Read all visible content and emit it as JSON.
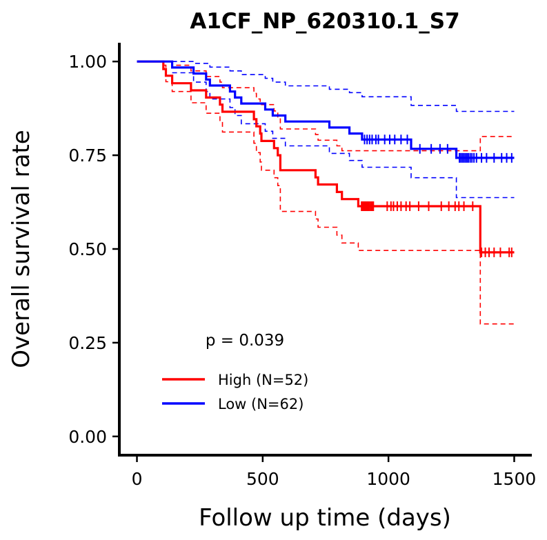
{
  "chart_data": {
    "type": "line",
    "title": "A1CF_NP_620310.1_S7",
    "xlabel": "Follow up time (days)",
    "ylabel": "Overall survival rate",
    "xlim": [
      -70,
      1570
    ],
    "ylim": [
      -0.05,
      1.05
    ],
    "xticks": [
      0,
      500,
      1000,
      1500
    ],
    "xtick_labels": [
      "0",
      "500",
      "1000",
      "1500"
    ],
    "yticks": [
      0.0,
      0.25,
      0.5,
      0.75,
      1.0
    ],
    "ytick_labels": [
      "0.00",
      "0.25",
      "0.50",
      "0.75",
      "1.00"
    ],
    "grid": false,
    "legend_position": "bottom-left",
    "annotation": "p = 0.039",
    "series": [
      {
        "name": "High (N=52)",
        "color": "#ff0000",
        "steps": [
          [
            0,
            1.0
          ],
          [
            105,
            1.0
          ],
          [
            105,
            0.98
          ],
          [
            115,
            0.98
          ],
          [
            115,
            0.962
          ],
          [
            140,
            0.962
          ],
          [
            140,
            0.942
          ],
          [
            215,
            0.942
          ],
          [
            215,
            0.923
          ],
          [
            275,
            0.923
          ],
          [
            275,
            0.904
          ],
          [
            330,
            0.904
          ],
          [
            330,
            0.885
          ],
          [
            340,
            0.885
          ],
          [
            340,
            0.866
          ],
          [
            465,
            0.866
          ],
          [
            465,
            0.846
          ],
          [
            475,
            0.846
          ],
          [
            475,
            0.827
          ],
          [
            490,
            0.827
          ],
          [
            490,
            0.808
          ],
          [
            495,
            0.808
          ],
          [
            495,
            0.788
          ],
          [
            545,
            0.788
          ],
          [
            545,
            0.769
          ],
          [
            560,
            0.769
          ],
          [
            560,
            0.75
          ],
          [
            570,
            0.75
          ],
          [
            570,
            0.71
          ],
          [
            710,
            0.71
          ],
          [
            710,
            0.691
          ],
          [
            720,
            0.691
          ],
          [
            720,
            0.672
          ],
          [
            795,
            0.672
          ],
          [
            795,
            0.652
          ],
          [
            815,
            0.652
          ],
          [
            815,
            0.633
          ],
          [
            880,
            0.633
          ],
          [
            880,
            0.614
          ],
          [
            1365,
            0.614
          ],
          [
            1365,
            0.491
          ],
          [
            1500,
            0.491
          ]
        ],
        "upper": [
          [
            105,
            1.0
          ],
          [
            140,
            1.0
          ],
          [
            140,
            0.99
          ],
          [
            215,
            0.99
          ],
          [
            215,
            0.975
          ],
          [
            275,
            0.975
          ],
          [
            275,
            0.96
          ],
          [
            330,
            0.96
          ],
          [
            330,
            0.945
          ],
          [
            340,
            0.945
          ],
          [
            340,
            0.93
          ],
          [
            465,
            0.93
          ],
          [
            465,
            0.915
          ],
          [
            475,
            0.915
          ],
          [
            475,
            0.9
          ],
          [
            490,
            0.9
          ],
          [
            490,
            0.885
          ],
          [
            545,
            0.885
          ],
          [
            545,
            0.868
          ],
          [
            560,
            0.868
          ],
          [
            560,
            0.85
          ],
          [
            570,
            0.85
          ],
          [
            570,
            0.82
          ],
          [
            710,
            0.82
          ],
          [
            710,
            0.805
          ],
          [
            720,
            0.805
          ],
          [
            720,
            0.79
          ],
          [
            795,
            0.79
          ],
          [
            795,
            0.775
          ],
          [
            815,
            0.775
          ],
          [
            815,
            0.762
          ],
          [
            1365,
            0.762
          ],
          [
            1365,
            0.8
          ],
          [
            1500,
            0.8
          ]
        ],
        "lower": [
          [
            105,
            0.99
          ],
          [
            115,
            0.99
          ],
          [
            115,
            0.946
          ],
          [
            140,
            0.946
          ],
          [
            140,
            0.92
          ],
          [
            215,
            0.92
          ],
          [
            215,
            0.89
          ],
          [
            275,
            0.89
          ],
          [
            275,
            0.862
          ],
          [
            330,
            0.862
          ],
          [
            330,
            0.84
          ],
          [
            340,
            0.84
          ],
          [
            340,
            0.812
          ],
          [
            465,
            0.812
          ],
          [
            465,
            0.782
          ],
          [
            475,
            0.782
          ],
          [
            475,
            0.757
          ],
          [
            490,
            0.757
          ],
          [
            490,
            0.732
          ],
          [
            495,
            0.732
          ],
          [
            495,
            0.71
          ],
          [
            545,
            0.71
          ],
          [
            545,
            0.69
          ],
          [
            560,
            0.69
          ],
          [
            560,
            0.669
          ],
          [
            570,
            0.669
          ],
          [
            570,
            0.6
          ],
          [
            710,
            0.6
          ],
          [
            710,
            0.58
          ],
          [
            720,
            0.58
          ],
          [
            720,
            0.558
          ],
          [
            795,
            0.558
          ],
          [
            795,
            0.537
          ],
          [
            815,
            0.537
          ],
          [
            815,
            0.516
          ],
          [
            880,
            0.516
          ],
          [
            880,
            0.496
          ],
          [
            1365,
            0.496
          ],
          [
            1365,
            0.3
          ],
          [
            1500,
            0.3
          ]
        ],
        "censored": [
          893,
          896,
          900,
          903,
          907,
          910,
          914,
          917,
          920,
          925,
          930,
          935,
          940,
          995,
          1010,
          1020,
          1035,
          1050,
          1070,
          1085,
          1120,
          1160,
          1210,
          1240,
          1265,
          1280,
          1300,
          1335,
          1370,
          1385,
          1400,
          1420,
          1445,
          1480,
          1490
        ]
      },
      {
        "name": "Low (N=62)",
        "color": "#0000ff",
        "steps": [
          [
            0,
            1.0
          ],
          [
            140,
            1.0
          ],
          [
            140,
            0.984
          ],
          [
            225,
            0.984
          ],
          [
            225,
            0.968
          ],
          [
            275,
            0.968
          ],
          [
            275,
            0.952
          ],
          [
            290,
            0.952
          ],
          [
            290,
            0.936
          ],
          [
            370,
            0.936
          ],
          [
            370,
            0.92
          ],
          [
            390,
            0.92
          ],
          [
            390,
            0.904
          ],
          [
            415,
            0.904
          ],
          [
            415,
            0.888
          ],
          [
            510,
            0.888
          ],
          [
            510,
            0.872
          ],
          [
            540,
            0.872
          ],
          [
            540,
            0.856
          ],
          [
            590,
            0.856
          ],
          [
            590,
            0.84
          ],
          [
            765,
            0.84
          ],
          [
            765,
            0.824
          ],
          [
            845,
            0.824
          ],
          [
            845,
            0.808
          ],
          [
            895,
            0.808
          ],
          [
            895,
            0.792
          ],
          [
            1090,
            0.792
          ],
          [
            1090,
            0.767
          ],
          [
            1270,
            0.767
          ],
          [
            1270,
            0.743
          ],
          [
            1500,
            0.743
          ]
        ],
        "upper": [
          [
            140,
            1.0
          ],
          [
            225,
            1.0
          ],
          [
            225,
            0.995
          ],
          [
            290,
            0.995
          ],
          [
            290,
            0.985
          ],
          [
            370,
            0.985
          ],
          [
            370,
            0.975
          ],
          [
            415,
            0.975
          ],
          [
            415,
            0.965
          ],
          [
            510,
            0.965
          ],
          [
            510,
            0.955
          ],
          [
            540,
            0.955
          ],
          [
            540,
            0.945
          ],
          [
            590,
            0.945
          ],
          [
            590,
            0.935
          ],
          [
            765,
            0.935
          ],
          [
            765,
            0.926
          ],
          [
            845,
            0.926
          ],
          [
            845,
            0.917
          ],
          [
            895,
            0.917
          ],
          [
            895,
            0.906
          ],
          [
            1090,
            0.906
          ],
          [
            1090,
            0.883
          ],
          [
            1270,
            0.883
          ],
          [
            1270,
            0.867
          ],
          [
            1500,
            0.867
          ]
        ],
        "lower": [
          [
            140,
            0.97
          ],
          [
            225,
            0.97
          ],
          [
            225,
            0.945
          ],
          [
            275,
            0.945
          ],
          [
            275,
            0.92
          ],
          [
            290,
            0.92
          ],
          [
            290,
            0.9
          ],
          [
            370,
            0.9
          ],
          [
            370,
            0.877
          ],
          [
            390,
            0.877
          ],
          [
            390,
            0.856
          ],
          [
            415,
            0.856
          ],
          [
            415,
            0.834
          ],
          [
            510,
            0.834
          ],
          [
            510,
            0.814
          ],
          [
            540,
            0.814
          ],
          [
            540,
            0.795
          ],
          [
            590,
            0.795
          ],
          [
            590,
            0.775
          ],
          [
            765,
            0.775
          ],
          [
            765,
            0.755
          ],
          [
            845,
            0.755
          ],
          [
            845,
            0.736
          ],
          [
            895,
            0.736
          ],
          [
            895,
            0.718
          ],
          [
            1090,
            0.718
          ],
          [
            1090,
            0.69
          ],
          [
            1270,
            0.69
          ],
          [
            1270,
            0.637
          ],
          [
            1500,
            0.637
          ]
        ],
        "censored": [
          905,
          915,
          925,
          935,
          950,
          960,
          985,
          1005,
          1025,
          1050,
          1075,
          1125,
          1170,
          1205,
          1235,
          1282,
          1288,
          1294,
          1300,
          1306,
          1312,
          1318,
          1325,
          1332,
          1340,
          1350,
          1370,
          1390,
          1420,
          1450,
          1470,
          1490
        ]
      }
    ]
  }
}
